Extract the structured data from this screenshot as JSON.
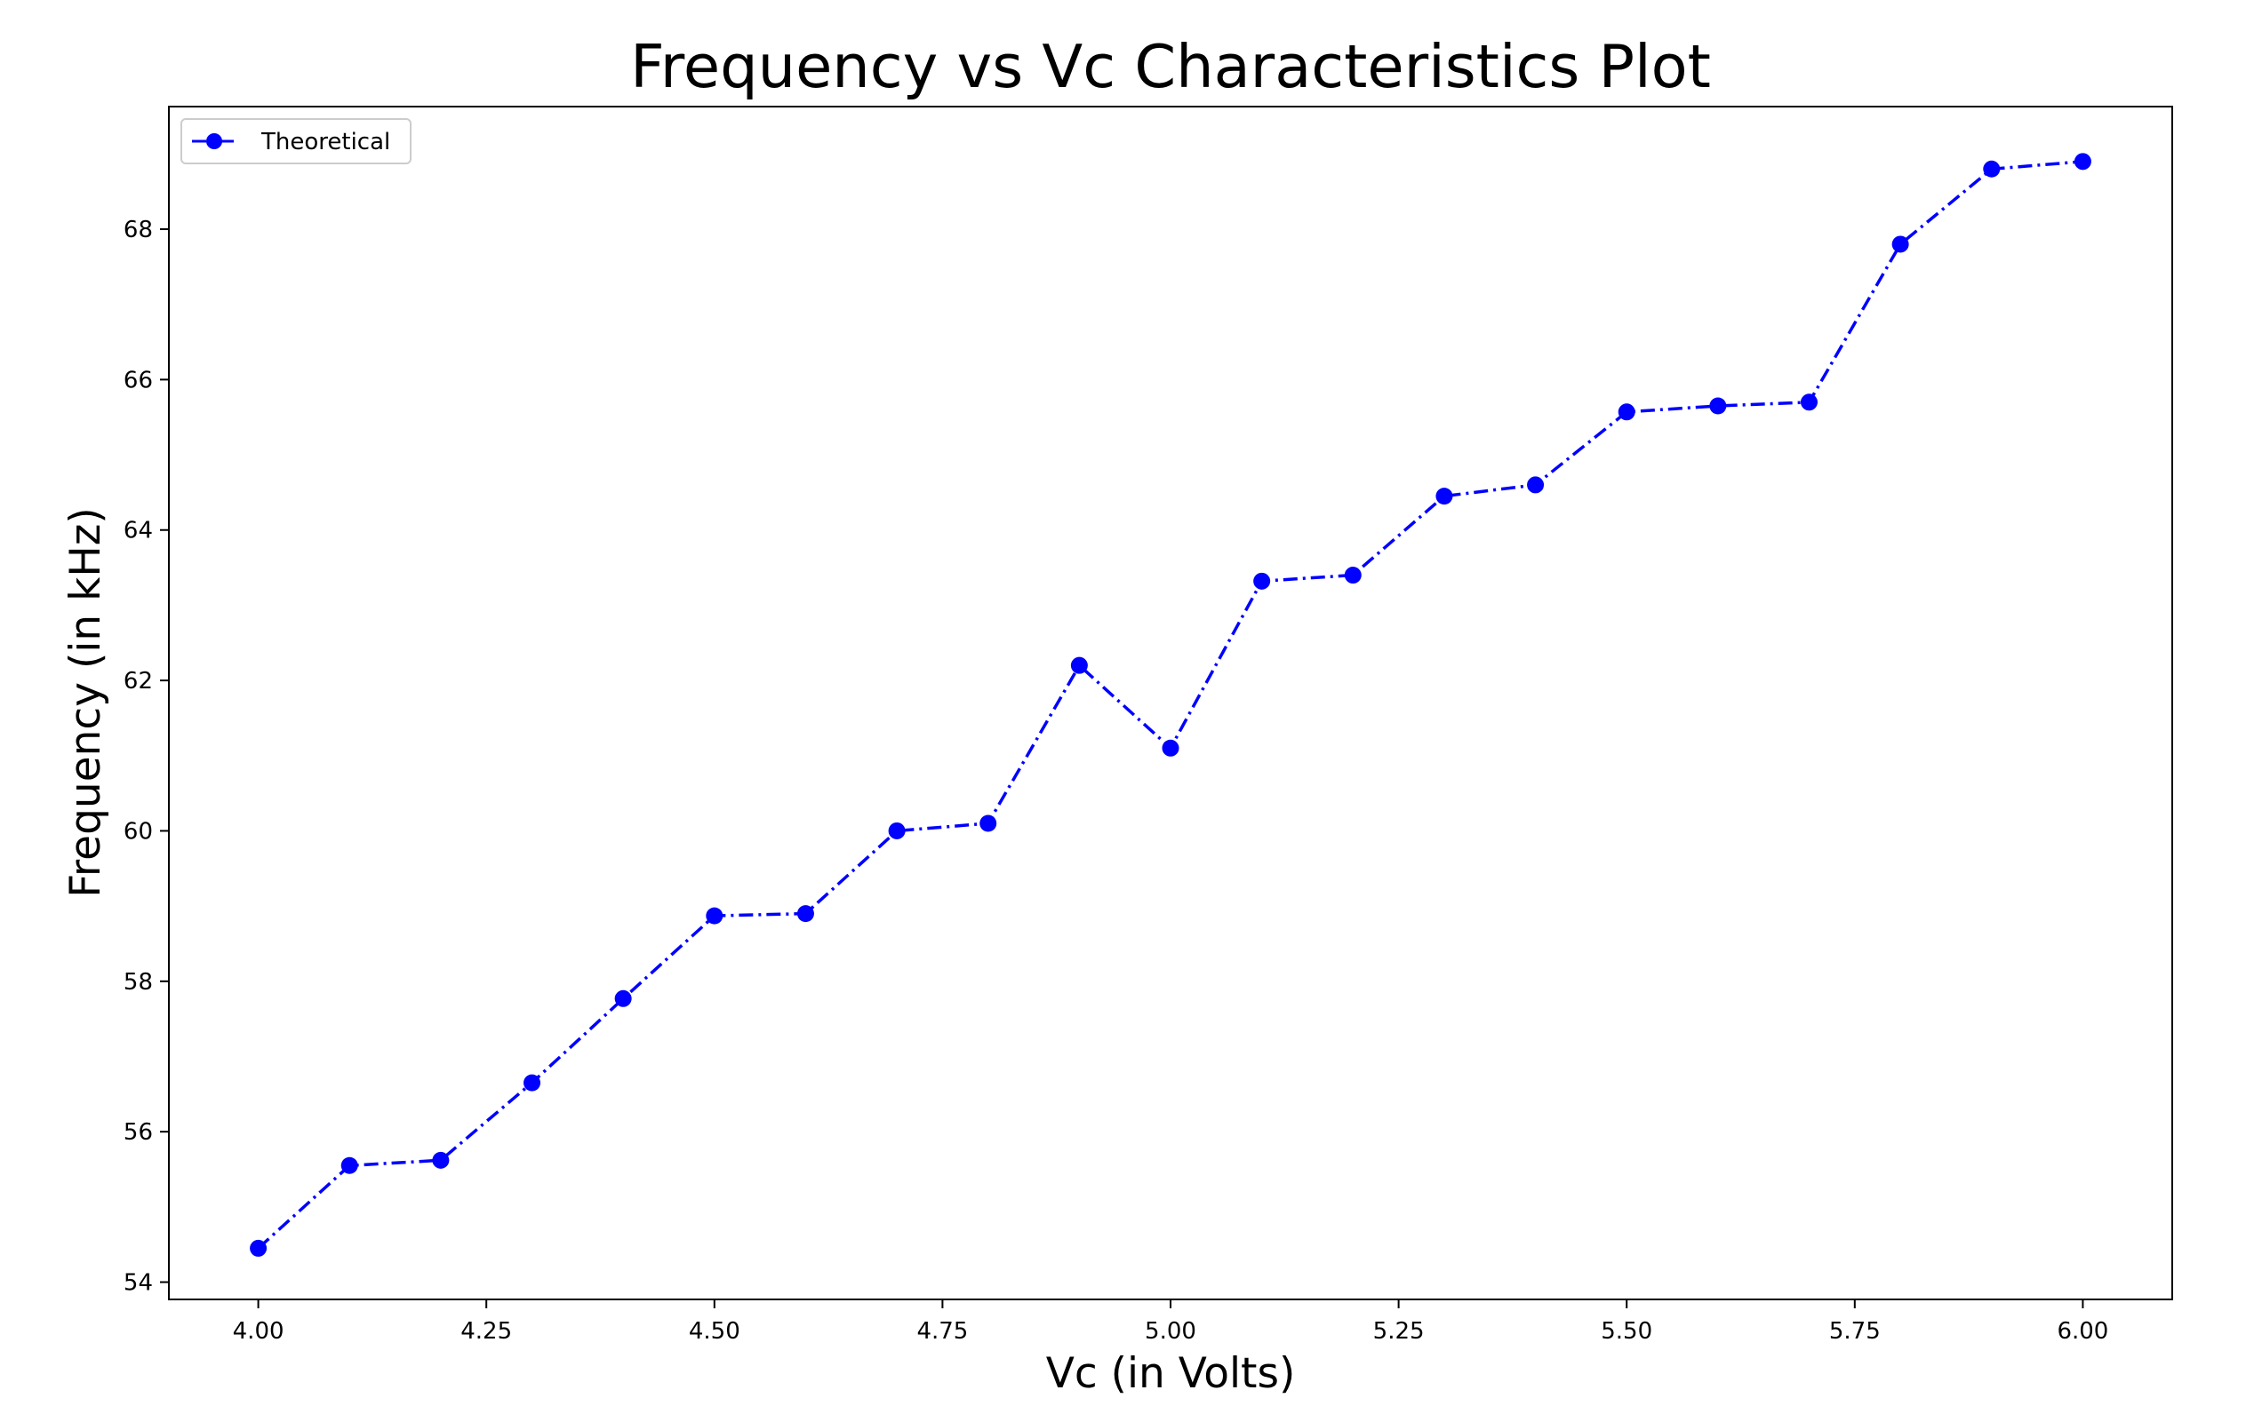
{
  "chart_data": {
    "type": "line",
    "title": "Frequency vs Vc Characteristics Plot",
    "xlabel": "Vc (in Volts)",
    "ylabel": "Frequency (in kHz)",
    "xlim": [
      3.902,
      6.098
    ],
    "ylim": [
      53.77,
      69.63
    ],
    "xticks": [
      4.0,
      4.25,
      4.5,
      4.75,
      5.0,
      5.25,
      5.5,
      5.75,
      6.0
    ],
    "xtick_labels": [
      "4.00",
      "4.25",
      "4.50",
      "4.75",
      "5.00",
      "5.25",
      "5.50",
      "5.75",
      "6.00"
    ],
    "yticks": [
      54,
      56,
      58,
      60,
      62,
      64,
      66,
      68
    ],
    "ytick_labels": [
      "54",
      "56",
      "58",
      "60",
      "62",
      "64",
      "66",
      "68"
    ],
    "grid": false,
    "legend_position": "top-left",
    "series": [
      {
        "name": "Theoretical",
        "color": "#0000ff",
        "linestyle": "dash-dot",
        "marker": "circle",
        "x": [
          4.0,
          4.1,
          4.2,
          4.3,
          4.4,
          4.5,
          4.6,
          4.7,
          4.8,
          4.9,
          5.0,
          5.1,
          5.2,
          5.3,
          5.4,
          5.5,
          5.6,
          5.7,
          5.8,
          5.9,
          6.0
        ],
        "y": [
          54.45,
          55.55,
          55.62,
          56.65,
          57.77,
          58.87,
          58.9,
          60.0,
          60.1,
          62.2,
          61.1,
          63.32,
          63.4,
          64.45,
          64.6,
          65.57,
          65.65,
          65.7,
          67.8,
          68.8,
          68.9
        ]
      }
    ]
  }
}
